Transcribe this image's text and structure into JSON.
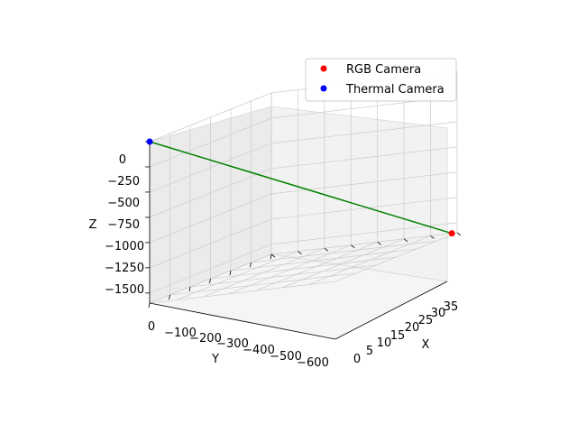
{
  "chart_data": {
    "type": "scatter",
    "projection": "3d",
    "title": "",
    "xlabel": "X",
    "ylabel": "Y",
    "zlabel": "Z",
    "xlim": [
      0,
      35
    ],
    "ylim": [
      0,
      -600
    ],
    "zlim": [
      -1600,
      0
    ],
    "x_ticks": [
      "0",
      "5",
      "10",
      "15",
      "20",
      "25",
      "30",
      "35"
    ],
    "y_ticks": [
      "0",
      "−100",
      "−200",
      "−300",
      "−400",
      "−500",
      "−600"
    ],
    "z_ticks": [
      "0",
      "−250",
      "−500",
      "−750",
      "−1000",
      "−1250",
      "−1500"
    ],
    "series": [
      {
        "name": "RGB Camera",
        "color": "#ff0000",
        "points": [
          {
            "x": 34,
            "y": -600,
            "z": -1600
          }
        ]
      },
      {
        "name": "Thermal Camera",
        "color": "#0000ff",
        "points": [
          {
            "x": 0,
            "y": 0,
            "z": 0
          }
        ]
      }
    ],
    "connector": {
      "color": "#008000",
      "from": "RGB Camera",
      "to": "Thermal Camera"
    },
    "legend": {
      "placement": "top-right",
      "entries": [
        "RGB Camera",
        "Thermal Camera"
      ]
    }
  }
}
